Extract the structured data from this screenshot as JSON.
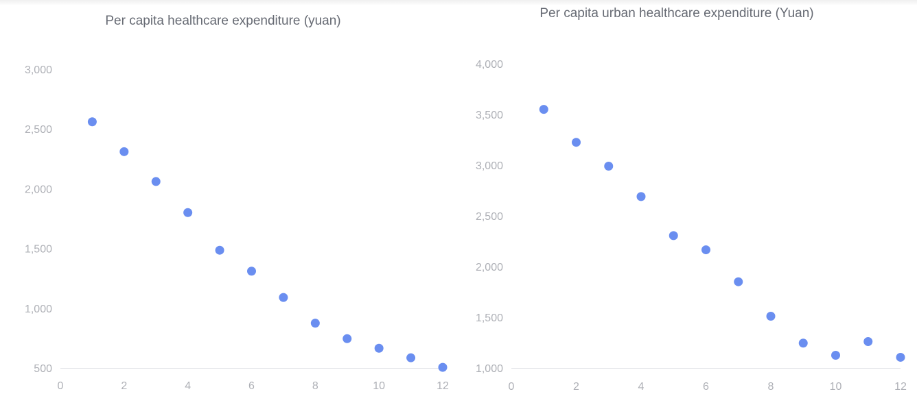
{
  "chart_data": [
    {
      "type": "scatter",
      "title": "Per capita healthcare expenditure (yuan)",
      "xlabel": "",
      "ylabel": "",
      "xlim": [
        0,
        12
      ],
      "ylim": [
        500,
        3000
      ],
      "x_ticks": [
        0,
        2,
        4,
        6,
        8,
        10,
        12
      ],
      "x_tick_labels": [
        "0",
        "2",
        "4",
        "6",
        "8",
        "10",
        "12"
      ],
      "y_ticks": [
        500,
        1000,
        1500,
        2000,
        2500,
        3000
      ],
      "y_tick_labels": [
        "500",
        "1,000",
        "1,500",
        "2,000",
        "2,500",
        "3,000"
      ],
      "grid": false,
      "color": "#6a8ef0",
      "x": [
        1,
        2,
        3,
        4,
        5,
        6,
        7,
        8,
        9,
        10,
        11,
        12
      ],
      "y": [
        2560,
        2310,
        2060,
        1800,
        1485,
        1310,
        1090,
        875,
        745,
        665,
        585,
        505
      ]
    },
    {
      "type": "scatter",
      "title": "Per capita urban healthcare expenditure (Yuan)",
      "xlabel": "",
      "ylabel": "",
      "xlim": [
        0,
        12
      ],
      "ylim": [
        1000,
        4000
      ],
      "x_ticks": [
        0,
        2,
        4,
        6,
        8,
        10,
        12
      ],
      "x_tick_labels": [
        "0",
        "2",
        "4",
        "6",
        "8",
        "10",
        "12"
      ],
      "y_ticks": [
        1000,
        1500,
        2000,
        2500,
        3000,
        3500,
        4000
      ],
      "y_tick_labels": [
        "1,000",
        "1,500",
        "2,000",
        "2,500",
        "3,000",
        "3,500",
        "4,000"
      ],
      "grid": false,
      "color": "#6a8ef0",
      "x": [
        1,
        2,
        3,
        4,
        5,
        6,
        7,
        8,
        9,
        10,
        11,
        12
      ],
      "y": [
        3550,
        3225,
        2990,
        2690,
        2305,
        2165,
        1850,
        1510,
        1245,
        1125,
        1260,
        1105
      ]
    }
  ]
}
